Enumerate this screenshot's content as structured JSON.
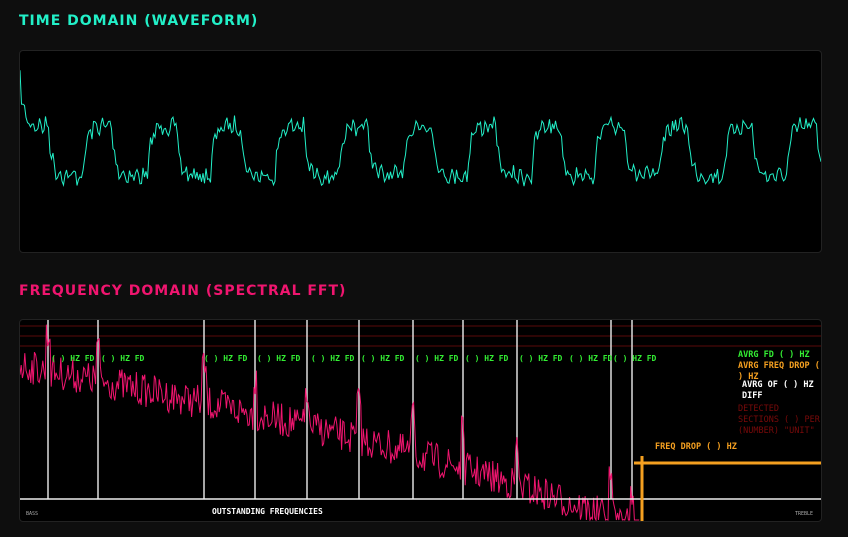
{
  "time_domain": {
    "title": "TIME DOMAIN (WAVEFORM)"
  },
  "frequency_domain": {
    "title": "FREQUENCY DOMAIN (SPECTRAL FFT)",
    "peak_labels": [
      "( ) HZ FD",
      "( ) HZ FD",
      "( ) HZ FD",
      "( ) HZ FD",
      "( ) HZ FD",
      "( ) HZ FD",
      "( ) HZ FD",
      "( ) HZ FD",
      "( ) HZ FD",
      "( ) HZ FD",
      "( ) HZ FD"
    ],
    "stats": {
      "avrg_fd": "AVRG FD ( ) HZ",
      "avrg_freq_drop": "AVRG FREQ DROP ( ) HZ",
      "avrg_of_diff": "AVRG OF ( ) HZ DIFF",
      "detected_sections": "DETECTED SECTIONS ( ) PER (NUMBER) \"UNIT\""
    },
    "freq_drop": "FREQ  DROP ( ) HZ",
    "footer": "OUTSTANDING FREQUENCIES",
    "bass": "BASS",
    "treble": "TREBLE"
  }
}
